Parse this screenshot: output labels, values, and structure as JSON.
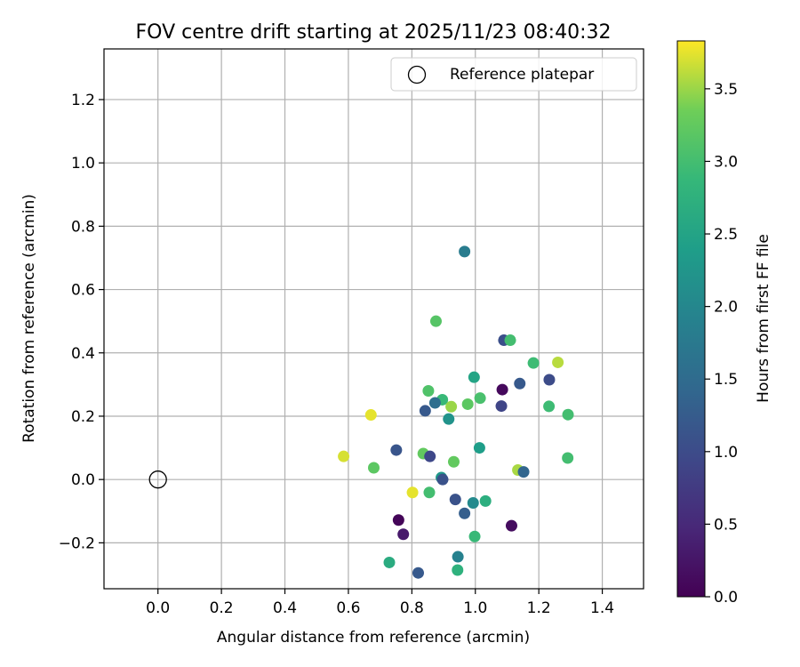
{
  "chart_data": {
    "type": "scatter",
    "title": "FOV centre drift starting at 2025/11/23 08:40:32",
    "xlabel": "Angular distance from reference (arcmin)",
    "ylabel": "Rotation from reference (arcmin)",
    "xlim": [
      -0.17,
      1.53
    ],
    "ylim": [
      -0.345,
      1.36
    ],
    "xticks": [
      0.0,
      0.2,
      0.4,
      0.6,
      0.8,
      1.0,
      1.2,
      1.4
    ],
    "xtick_labels": [
      "0.0",
      "0.2",
      "0.4",
      "0.6",
      "0.8",
      "1.0",
      "1.2",
      "1.4"
    ],
    "yticks": [
      -0.2,
      0.0,
      0.2,
      0.4,
      0.6,
      0.8,
      1.0,
      1.2
    ],
    "ytick_labels": [
      "−0.2",
      "0.0",
      "0.2",
      "0.4",
      "0.6",
      "0.8",
      "1.0",
      "1.2"
    ],
    "grid": true,
    "legend": {
      "position": "upper right",
      "label": "Reference platepar"
    },
    "reference_point": {
      "x": 0.0,
      "y": 0.0
    },
    "colorbar": {
      "label": "Hours from first FF file",
      "colormap": "viridis",
      "range": [
        0.0,
        3.83
      ],
      "ticks": [
        0.0,
        0.5,
        1.0,
        1.5,
        2.0,
        2.5,
        3.0,
        3.5
      ],
      "tick_labels": [
        "0.0",
        "0.5",
        "1.0",
        "1.5",
        "2.0",
        "2.5",
        "3.0",
        "3.5"
      ]
    },
    "points": [
      {
        "x": 0.966,
        "y": 0.72,
        "h": 1.8
      },
      {
        "x": 0.876,
        "y": 0.5,
        "h": 3.15
      },
      {
        "x": 1.09,
        "y": 0.44,
        "h": 1.05
      },
      {
        "x": 1.11,
        "y": 0.44,
        "h": 3.0
      },
      {
        "x": 1.183,
        "y": 0.368,
        "h": 2.95
      },
      {
        "x": 1.26,
        "y": 0.37,
        "h": 3.6
      },
      {
        "x": 0.996,
        "y": 0.323,
        "h": 2.5
      },
      {
        "x": 1.233,
        "y": 0.315,
        "h": 1.0
      },
      {
        "x": 1.14,
        "y": 0.303,
        "h": 1.2
      },
      {
        "x": 1.085,
        "y": 0.284,
        "h": 0.1
      },
      {
        "x": 0.852,
        "y": 0.28,
        "h": 3.1
      },
      {
        "x": 1.015,
        "y": 0.257,
        "h": 3.05
      },
      {
        "x": 0.896,
        "y": 0.252,
        "h": 2.9
      },
      {
        "x": 0.873,
        "y": 0.242,
        "h": 1.55
      },
      {
        "x": 0.976,
        "y": 0.238,
        "h": 3.2
      },
      {
        "x": 0.924,
        "y": 0.23,
        "h": 3.5
      },
      {
        "x": 1.082,
        "y": 0.232,
        "h": 0.9
      },
      {
        "x": 1.232,
        "y": 0.231,
        "h": 2.95
      },
      {
        "x": 0.842,
        "y": 0.217,
        "h": 1.2
      },
      {
        "x": 1.292,
        "y": 0.205,
        "h": 3.0
      },
      {
        "x": 0.671,
        "y": 0.204,
        "h": 3.75
      },
      {
        "x": 0.916,
        "y": 0.191,
        "h": 2.2
      },
      {
        "x": 1.013,
        "y": 0.1,
        "h": 2.4
      },
      {
        "x": 0.751,
        "y": 0.093,
        "h": 1.15
      },
      {
        "x": 0.836,
        "y": 0.082,
        "h": 3.25
      },
      {
        "x": 0.857,
        "y": 0.073,
        "h": 0.95
      },
      {
        "x": 0.585,
        "y": 0.073,
        "h": 3.7
      },
      {
        "x": 1.291,
        "y": 0.068,
        "h": 3.0
      },
      {
        "x": 0.932,
        "y": 0.056,
        "h": 3.25
      },
      {
        "x": 0.68,
        "y": 0.037,
        "h": 3.2
      },
      {
        "x": 1.134,
        "y": 0.03,
        "h": 3.55
      },
      {
        "x": 1.152,
        "y": 0.024,
        "h": 1.4
      },
      {
        "x": 0.893,
        "y": 0.006,
        "h": 2.3
      },
      {
        "x": 0.897,
        "y": 0.0,
        "h": 1.1
      },
      {
        "x": 0.802,
        "y": -0.041,
        "h": 3.75
      },
      {
        "x": 0.855,
        "y": -0.041,
        "h": 3.0
      },
      {
        "x": 0.937,
        "y": -0.063,
        "h": 1.1
      },
      {
        "x": 1.032,
        "y": -0.068,
        "h": 2.7
      },
      {
        "x": 0.993,
        "y": -0.074,
        "h": 2.05
      },
      {
        "x": 0.966,
        "y": -0.107,
        "h": 1.3
      },
      {
        "x": 0.758,
        "y": -0.128,
        "h": 0.05
      },
      {
        "x": 1.114,
        "y": -0.146,
        "h": 0.15
      },
      {
        "x": 0.773,
        "y": -0.173,
        "h": 0.3
      },
      {
        "x": 0.998,
        "y": -0.18,
        "h": 2.9
      },
      {
        "x": 0.945,
        "y": -0.244,
        "h": 1.9
      },
      {
        "x": 0.729,
        "y": -0.262,
        "h": 2.65
      },
      {
        "x": 0.944,
        "y": -0.286,
        "h": 2.75
      },
      {
        "x": 0.82,
        "y": -0.295,
        "h": 1.2
      }
    ]
  }
}
